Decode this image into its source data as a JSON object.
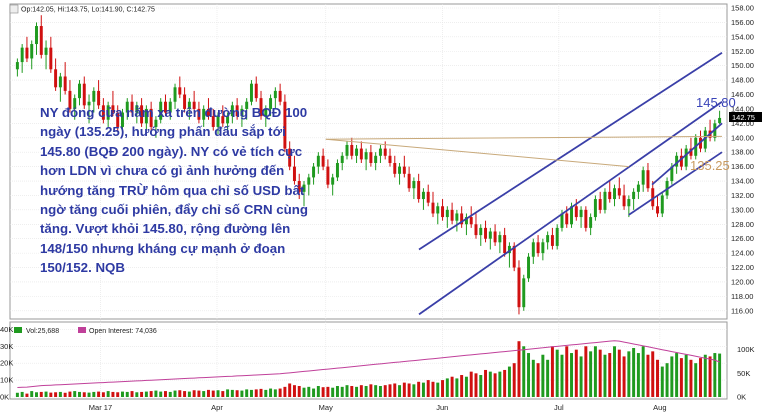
{
  "ohlc_label": "Op:142.05, Hi:143.75, Lo:141.90, C:142.75",
  "volume_legend": {
    "volume": "Vol:25,688",
    "open_interest": "Open Interest: 74,036"
  },
  "annotation_text": "NY đóng cửa nằm xa trên đường BQĐ 100 ngày (135.25), hướng phấn đấu sắp tới 145.80 (BQĐ 200 ngày). NY có vẻ tích cực hơn LDN vì chưa có gì ảnh hưởng đến hướng tăng TRỪ hôm qua chỉ số USD bất ngờ tăng cuối phiên, đẩy chỉ số CRN cùng tăng. Vượt khỏi 145.80, rộng đường lên 148/150 nhưng kháng cự mạnh ở đoạn 150/152. NQB",
  "level_labels": {
    "ma200": "145.80",
    "ma100": "135.25"
  },
  "colors": {
    "up": "#1f9a1f",
    "down": "#d01010",
    "channel": "#3a3fa8",
    "ma_line": "#c8a97a",
    "open_interest": "#c0409a",
    "ma200_label": "#3a44b8",
    "ma100_label": "#c89a60"
  },
  "chart_data": {
    "type": "candlestick",
    "price_axis": {
      "range": [
        115,
        158
      ],
      "ticks": [
        "158.00",
        "156.00",
        "154.00",
        "152.00",
        "150.00",
        "148.00",
        "146.00",
        "144.00",
        "142.00",
        "140.00",
        "138.00",
        "136.00",
        "134.00",
        "132.00",
        "130.00",
        "128.00",
        "126.00",
        "124.00",
        "122.00",
        "120.00",
        "118.00",
        "116.00"
      ],
      "last_price": "142.75"
    },
    "date_axis": {
      "range": [
        0,
        182
      ],
      "labels": [
        {
          "text": "Mar 17",
          "pos": 22
        },
        {
          "text": "Apr",
          "pos": 52
        },
        {
          "text": "May",
          "pos": 80
        },
        {
          "text": "Jun",
          "pos": 110
        },
        {
          "text": "Jul",
          "pos": 140
        },
        {
          "text": "Aug",
          "pos": 166
        }
      ]
    },
    "candles": [
      [
        149.5,
        151.0,
        148.5,
        150.5
      ],
      [
        150.5,
        153.0,
        149.0,
        152.5
      ],
      [
        152.5,
        154.0,
        150.5,
        151.0
      ],
      [
        151.0,
        153.5,
        149.5,
        153.0
      ],
      [
        153.0,
        156.0,
        151.5,
        155.5
      ],
      [
        155.5,
        157.0,
        151.0,
        151.5
      ],
      [
        151.5,
        153.5,
        149.5,
        152.5
      ],
      [
        152.5,
        154.0,
        149.0,
        149.5
      ],
      [
        149.5,
        151.0,
        146.5,
        147.0
      ],
      [
        147.0,
        149.0,
        145.0,
        148.5
      ],
      [
        148.5,
        150.5,
        146.0,
        146.5
      ],
      [
        146.5,
        148.0,
        143.5,
        144.0
      ],
      [
        144.0,
        146.0,
        142.5,
        145.5
      ],
      [
        145.5,
        148.0,
        144.5,
        147.5
      ],
      [
        147.5,
        148.5,
        144.0,
        144.5
      ],
      [
        144.5,
        146.0,
        142.0,
        145.0
      ],
      [
        145.0,
        147.0,
        143.5,
        146.5
      ],
      [
        146.5,
        148.0,
        144.0,
        144.5
      ],
      [
        144.5,
        145.5,
        142.0,
        142.5
      ],
      [
        142.5,
        145.0,
        141.5,
        144.5
      ],
      [
        144.5,
        146.5,
        143.0,
        143.5
      ],
      [
        143.5,
        144.5,
        141.0,
        141.5
      ],
      [
        141.5,
        144.0,
        140.5,
        143.5
      ],
      [
        143.5,
        145.5,
        142.5,
        145.0
      ],
      [
        145.0,
        146.0,
        143.0,
        143.5
      ],
      [
        143.5,
        145.0,
        142.0,
        144.5
      ],
      [
        144.5,
        145.5,
        141.5,
        142.0
      ],
      [
        142.0,
        144.5,
        141.0,
        144.0
      ],
      [
        144.0,
        145.0,
        141.0,
        141.5
      ],
      [
        141.5,
        143.0,
        140.0,
        142.5
      ],
      [
        142.5,
        145.5,
        142.0,
        145.0
      ],
      [
        145.0,
        146.0,
        143.0,
        143.5
      ],
      [
        143.5,
        145.5,
        142.5,
        145.0
      ],
      [
        145.0,
        147.5,
        144.0,
        147.0
      ],
      [
        147.0,
        148.5,
        145.5,
        146.0
      ],
      [
        146.0,
        147.0,
        143.5,
        144.0
      ],
      [
        144.0,
        145.5,
        142.5,
        145.0
      ],
      [
        145.0,
        146.5,
        143.5,
        144.0
      ],
      [
        144.0,
        145.0,
        142.0,
        142.5
      ],
      [
        142.5,
        144.5,
        141.5,
        144.0
      ],
      [
        144.0,
        145.5,
        142.5,
        143.0
      ],
      [
        143.0,
        144.0,
        141.0,
        141.5
      ],
      [
        141.5,
        143.5,
        140.5,
        143.0
      ],
      [
        143.0,
        144.5,
        141.5,
        142.0
      ],
      [
        142.0,
        143.5,
        140.5,
        143.0
      ],
      [
        143.0,
        145.0,
        142.0,
        144.5
      ],
      [
        144.5,
        145.5,
        142.5,
        143.0
      ],
      [
        143.0,
        144.5,
        141.5,
        144.0
      ],
      [
        144.0,
        145.5,
        142.5,
        145.0
      ],
      [
        145.0,
        148.0,
        144.5,
        147.5
      ],
      [
        147.5,
        148.5,
        145.0,
        145.5
      ],
      [
        145.5,
        146.5,
        142.5,
        143.0
      ],
      [
        143.0,
        144.5,
        141.5,
        144.0
      ],
      [
        144.0,
        146.0,
        143.0,
        145.5
      ],
      [
        145.5,
        147.0,
        144.0,
        146.5
      ],
      [
        146.5,
        147.5,
        144.5,
        145.0
      ],
      [
        145.0,
        146.0,
        138.0,
        138.5
      ],
      [
        138.5,
        139.5,
        135.5,
        136.0
      ],
      [
        136.0,
        137.5,
        133.5,
        134.0
      ],
      [
        134.0,
        135.0,
        131.5,
        132.5
      ],
      [
        132.5,
        134.0,
        130.5,
        133.5
      ],
      [
        133.5,
        135.0,
        132.0,
        134.5
      ],
      [
        134.5,
        136.5,
        133.5,
        136.0
      ],
      [
        136.0,
        138.0,
        135.0,
        137.5
      ],
      [
        137.5,
        138.5,
        135.5,
        136.0
      ],
      [
        136.0,
        137.0,
        133.0,
        133.5
      ],
      [
        133.5,
        135.0,
        132.0,
        134.5
      ],
      [
        134.5,
        137.0,
        134.0,
        136.5
      ],
      [
        136.5,
        138.0,
        135.5,
        137.5
      ],
      [
        137.5,
        139.5,
        137.0,
        139.0
      ],
      [
        139.0,
        140.0,
        137.0,
        137.5
      ],
      [
        137.5,
        139.0,
        136.5,
        138.5
      ],
      [
        138.5,
        139.5,
        136.5,
        137.0
      ],
      [
        137.0,
        138.5,
        135.5,
        138.0
      ],
      [
        138.0,
        139.0,
        136.0,
        136.5
      ],
      [
        136.5,
        138.0,
        135.5,
        137.5
      ],
      [
        137.5,
        139.0,
        136.5,
        138.5
      ],
      [
        138.5,
        139.5,
        137.0,
        137.5
      ],
      [
        137.5,
        138.5,
        136.0,
        136.5
      ],
      [
        136.5,
        137.5,
        134.5,
        135.0
      ],
      [
        135.0,
        136.5,
        133.5,
        136.0
      ],
      [
        136.0,
        137.5,
        134.5,
        135.0
      ],
      [
        135.0,
        136.0,
        132.5,
        133.0
      ],
      [
        133.0,
        134.5,
        131.5,
        134.0
      ],
      [
        134.0,
        135.0,
        131.0,
        131.5
      ],
      [
        131.5,
        133.0,
        130.0,
        132.5
      ],
      [
        132.5,
        133.5,
        130.5,
        131.0
      ],
      [
        131.0,
        132.5,
        129.0,
        129.5
      ],
      [
        129.5,
        131.0,
        128.0,
        130.5
      ],
      [
        130.5,
        131.5,
        128.5,
        129.0
      ],
      [
        129.0,
        130.5,
        127.5,
        130.0
      ],
      [
        130.0,
        131.0,
        128.0,
        128.5
      ],
      [
        128.5,
        130.0,
        127.0,
        129.5
      ],
      [
        129.5,
        130.5,
        127.5,
        128.0
      ],
      [
        128.0,
        129.5,
        126.5,
        129.0
      ],
      [
        129.0,
        130.5,
        127.5,
        128.0
      ],
      [
        128.0,
        129.5,
        126.0,
        126.5
      ],
      [
        126.5,
        128.0,
        125.0,
        127.5
      ],
      [
        127.5,
        128.5,
        125.5,
        126.0
      ],
      [
        126.0,
        127.5,
        124.5,
        127.0
      ],
      [
        127.0,
        128.0,
        125.0,
        125.5
      ],
      [
        125.5,
        127.0,
        124.0,
        126.5
      ],
      [
        126.5,
        127.5,
        123.5,
        124.0
      ],
      [
        124.0,
        125.5,
        122.0,
        125.0
      ],
      [
        125.0,
        125.5,
        121.5,
        122.0
      ],
      [
        122.0,
        123.0,
        115.5,
        116.5
      ],
      [
        116.5,
        121.0,
        116.0,
        120.5
      ],
      [
        120.5,
        124.0,
        120.0,
        123.5
      ],
      [
        123.5,
        126.0,
        122.5,
        125.5
      ],
      [
        125.5,
        126.5,
        123.5,
        124.0
      ],
      [
        124.0,
        126.0,
        123.0,
        125.5
      ],
      [
        125.5,
        127.0,
        124.5,
        126.5
      ],
      [
        126.5,
        127.5,
        124.5,
        125.0
      ],
      [
        125.0,
        128.0,
        124.5,
        127.5
      ],
      [
        127.5,
        130.0,
        127.0,
        129.5
      ],
      [
        129.5,
        130.5,
        127.5,
        128.0
      ],
      [
        128.0,
        131.0,
        127.5,
        130.5
      ],
      [
        130.5,
        131.5,
        128.5,
        129.0
      ],
      [
        129.0,
        130.5,
        127.5,
        130.0
      ],
      [
        130.0,
        130.5,
        127.0,
        127.5
      ],
      [
        127.5,
        129.5,
        126.5,
        129.0
      ],
      [
        129.0,
        132.0,
        128.5,
        131.5
      ],
      [
        131.5,
        132.5,
        129.5,
        130.0
      ],
      [
        130.0,
        133.0,
        129.5,
        132.5
      ],
      [
        132.5,
        134.0,
        131.0,
        131.5
      ],
      [
        131.5,
        133.5,
        130.5,
        133.0
      ],
      [
        133.0,
        134.5,
        131.5,
        132.0
      ],
      [
        132.0,
        133.5,
        130.0,
        130.5
      ],
      [
        130.5,
        132.0,
        129.0,
        131.5
      ],
      [
        131.5,
        133.0,
        130.0,
        132.5
      ],
      [
        132.5,
        134.0,
        131.5,
        133.5
      ],
      [
        133.5,
        136.0,
        132.5,
        135.5
      ],
      [
        135.5,
        136.5,
        132.5,
        133.0
      ],
      [
        133.0,
        134.0,
        130.0,
        130.5
      ],
      [
        130.5,
        132.0,
        129.0,
        129.5
      ],
      [
        129.5,
        132.5,
        129.0,
        132.0
      ],
      [
        132.0,
        134.5,
        131.5,
        134.0
      ],
      [
        134.0,
        136.5,
        133.5,
        136.0
      ],
      [
        136.0,
        138.0,
        135.0,
        137.5
      ],
      [
        137.5,
        138.5,
        135.5,
        136.0
      ],
      [
        136.0,
        139.0,
        135.5,
        138.5
      ],
      [
        138.5,
        140.0,
        137.0,
        137.5
      ],
      [
        137.5,
        140.5,
        137.0,
        140.0
      ],
      [
        140.0,
        141.0,
        138.0,
        138.5
      ],
      [
        138.5,
        141.5,
        138.0,
        141.0
      ],
      [
        141.0,
        142.5,
        139.5,
        140.0
      ],
      [
        140.0,
        142.5,
        139.5,
        142.0
      ],
      [
        142.05,
        143.75,
        141.9,
        142.75
      ]
    ],
    "volume_axis": {
      "range": [
        0,
        42000
      ],
      "ticks": [
        "40K",
        "30K",
        "20K",
        "10K",
        "0K"
      ]
    },
    "open_interest_axis": {
      "range": [
        0,
        150000
      ],
      "ticks": [
        "100K",
        "50K",
        "0K"
      ]
    },
    "volume": [
      2500,
      3000,
      2000,
      3500,
      2800,
      3000,
      3200,
      2600,
      2800,
      3000,
      2500,
      3200,
      3500,
      3000,
      2800,
      2600,
      3000,
      3200,
      2800,
      3500,
      3000,
      2800,
      3200,
      3000,
      3500,
      2800,
      3000,
      3200,
      3500,
      3800,
      3200,
      3500,
      3000,
      3800,
      4000,
      3500,
      3200,
      4000,
      3800,
      3500,
      4200,
      3800,
      4000,
      3500,
      4500,
      4200,
      4000,
      3800,
      4500,
      4200,
      4500,
      4800,
      4200,
      5000,
      4500,
      5000,
      6000,
      8000,
      7000,
      6500,
      5500,
      6000,
      5000,
      6500,
      5800,
      6000,
      5500,
      6500,
      6000,
      7000,
      6500,
      6000,
      7000,
      6500,
      7500,
      7000,
      6500,
      7000,
      7500,
      8000,
      7000,
      8500,
      8000,
      7500,
      9000,
      8500,
      10000,
      9000,
      8500,
      10000,
      11000,
      12000,
      11000,
      13000,
      12000,
      15000,
      14000,
      13000,
      16000,
      15000,
      14000,
      15000,
      16000,
      18000,
      20000,
      33000,
      30000,
      26000,
      22000,
      20000,
      25000,
      22000,
      30000,
      28000,
      25000,
      30000,
      26000,
      28000,
      24000,
      30000,
      27000,
      30000,
      28000,
      25000,
      26000,
      30000,
      28000,
      24000,
      27000,
      29000,
      26000,
      30000,
      25000,
      27000,
      22000,
      18000,
      20000,
      24000,
      26000,
      23000,
      25000,
      22000,
      20000,
      23000,
      25000,
      24000,
      26000,
      25688
    ],
    "open_interest": [
      20000,
      20500,
      21000,
      22000,
      23000,
      24000,
      24500,
      25000,
      25500,
      26000,
      26500,
      27000,
      27500,
      28000,
      28500,
      29000,
      29500,
      30000,
      30500,
      31000,
      31500,
      32000,
      32500,
      33000,
      33500,
      34000,
      34500,
      35000,
      35500,
      36000,
      36500,
      37000,
      37500,
      38000,
      38500,
      39000,
      39500,
      40000,
      40500,
      41000,
      41500,
      42000,
      42500,
      43000,
      43500,
      44000,
      44500,
      45000,
      45500,
      46000,
      46500,
      47000,
      47500,
      48000,
      48500,
      49000,
      50000,
      51000,
      52000,
      53000,
      54000,
      55000,
      56000,
      57000,
      58000,
      59000,
      60000,
      61000,
      62000,
      63000,
      64000,
      65000,
      66000,
      67000,
      68000,
      69000,
      70000,
      71000,
      72000,
      73000,
      74000,
      75000,
      76000,
      77000,
      78000,
      79000,
      80000,
      81000,
      82000,
      83000,
      84000,
      85000,
      86000,
      87000,
      88000,
      89000,
      90000,
      91000,
      92000,
      93000,
      94000,
      95000,
      96000,
      97000,
      98000,
      99000,
      100000,
      101000,
      102000,
      103000,
      104000,
      105000,
      106000,
      107000,
      108000,
      109000,
      110000,
      111000,
      112000,
      113000,
      114000,
      115000,
      116000,
      117000,
      118000,
      119000,
      118000,
      116000,
      114000,
      112000,
      110000,
      108000,
      106000,
      104000,
      102000,
      100000,
      98000,
      96000,
      94000,
      92000,
      90000,
      88000,
      86000,
      84000,
      82000,
      80000,
      78000,
      74036
    ],
    "lines": [
      {
        "name": "channel-lower",
        "from": [
          104,
          115.5
        ],
        "to": [
          182,
          145.0
        ]
      },
      {
        "name": "channel-upper",
        "from": [
          104,
          124.5
        ],
        "to": [
          182,
          151.8
        ]
      },
      {
        "name": "inner-support",
        "from": [
          158,
          129.3
        ],
        "to": [
          182,
          138.0
        ]
      },
      {
        "name": "inner-trend",
        "from": [
          164,
          133.5
        ],
        "to": [
          182,
          142.0
        ]
      },
      {
        "name": "horizontal-resistance",
        "from": [
          80,
          139.8
        ],
        "to": [
          182,
          140.2
        ]
      },
      {
        "name": "ma100-approach",
        "from": [
          80,
          139.8
        ],
        "to": [
          158,
          136.0
        ]
      }
    ]
  }
}
